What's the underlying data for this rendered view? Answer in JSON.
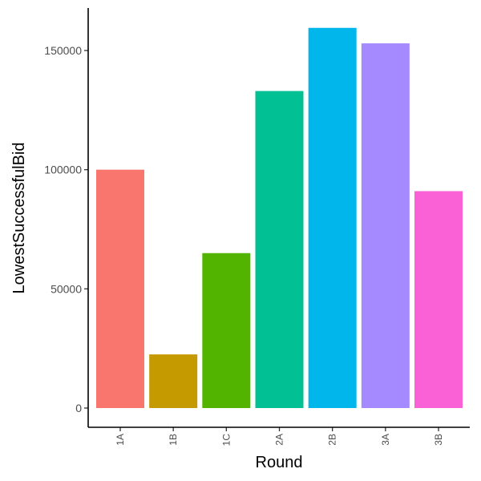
{
  "chart_data": {
    "type": "bar",
    "categories": [
      "1A",
      "1B",
      "1C",
      "2A",
      "2B",
      "3A",
      "3B"
    ],
    "values": [
      100000,
      22500,
      65000,
      133000,
      159500,
      153000,
      91000
    ],
    "colors": [
      "#F8766D",
      "#C49A00",
      "#53B400",
      "#00C094",
      "#00B6EB",
      "#A58AFF",
      "#FB61D7"
    ],
    "title": "",
    "xlabel": "Round",
    "ylabel": "LowestSuccessfulBid",
    "ylim": [
      0,
      167000
    ],
    "yticks": [
      0,
      50000,
      100000,
      150000
    ],
    "ytick_labels": [
      "0",
      "50000",
      "100000",
      "150000"
    ],
    "grid": false,
    "legend": "none"
  }
}
